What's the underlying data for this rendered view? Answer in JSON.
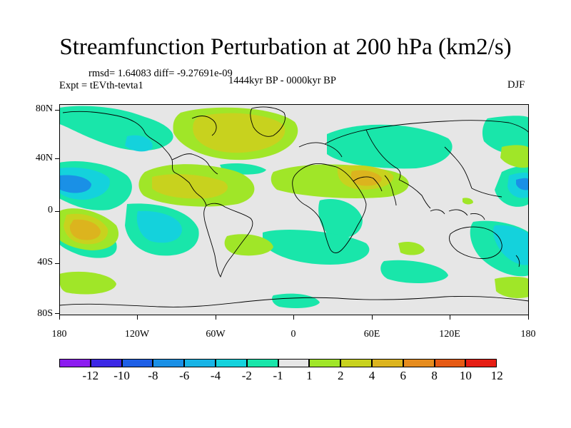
{
  "title": "Streamfunction Perturbation at 200 hPa (km2/s)",
  "stats": "rmsd= 1.64083 diff= -9.27691e-09",
  "experiment": "Expt = tEVth-tevta1",
  "period": "1444kyr BP - 0000kyr BP",
  "season": "DJF",
  "lat_labels": [
    "80N",
    "40N",
    "0",
    "40S",
    "80S"
  ],
  "lon_labels": [
    "180",
    "120W",
    "60W",
    "0",
    "60E",
    "120E",
    "180"
  ],
  "legend": {
    "labels": [
      "-12",
      "-10",
      "-8",
      "-6",
      "-4",
      "-2",
      "-1",
      "1",
      "2",
      "4",
      "6",
      "8",
      "10",
      "12"
    ],
    "colors": [
      "#8c1cf0",
      "#3c28e6",
      "#1e5fe6",
      "#1a90e6",
      "#18b4e6",
      "#14d2dc",
      "#19e6aa",
      "#e6e6e6",
      "#a0e628",
      "#c8d21e",
      "#dcb41e",
      "#e68c1e",
      "#e65a14",
      "#e61e14"
    ]
  },
  "map_colors": {
    "background": "#e6e6e6",
    "neg_light": "#19e6aa",
    "neg_mid": "#14d2dc",
    "neg_strong": "#18b4e6",
    "neg_deep": "#1a90e6",
    "pos_light": "#a0e628",
    "pos_mid": "#c8d21e",
    "pos_strong": "#dcb41e",
    "coast": "#000000"
  }
}
